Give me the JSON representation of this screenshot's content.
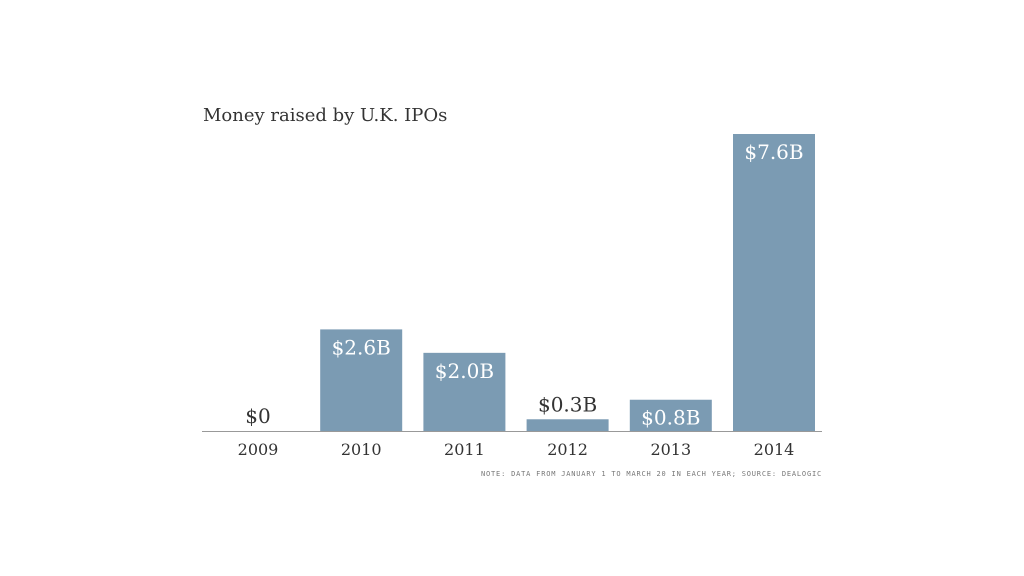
{
  "chart_data": {
    "type": "bar",
    "title": "Money raised by U.K. IPOs",
    "categories": [
      "2009",
      "2010",
      "2011",
      "2012",
      "2013",
      "2014"
    ],
    "values": [
      0,
      2.6,
      2.0,
      0.3,
      0.8,
      7.6
    ],
    "value_labels": [
      "$0",
      "$2.6B",
      "$2.0B",
      "$0.3B",
      "$0.8B",
      "$7.6B"
    ],
    "unit": "billions of dollars",
    "ylim": [
      0,
      7.6
    ],
    "grid": false,
    "legend": "none",
    "bar_color": "#7b9bb3",
    "note": "NOTE: DATA FROM JANUARY 1 TO MARCH 20 IN EACH YEAR; SOURCE: DEALOGIC"
  }
}
